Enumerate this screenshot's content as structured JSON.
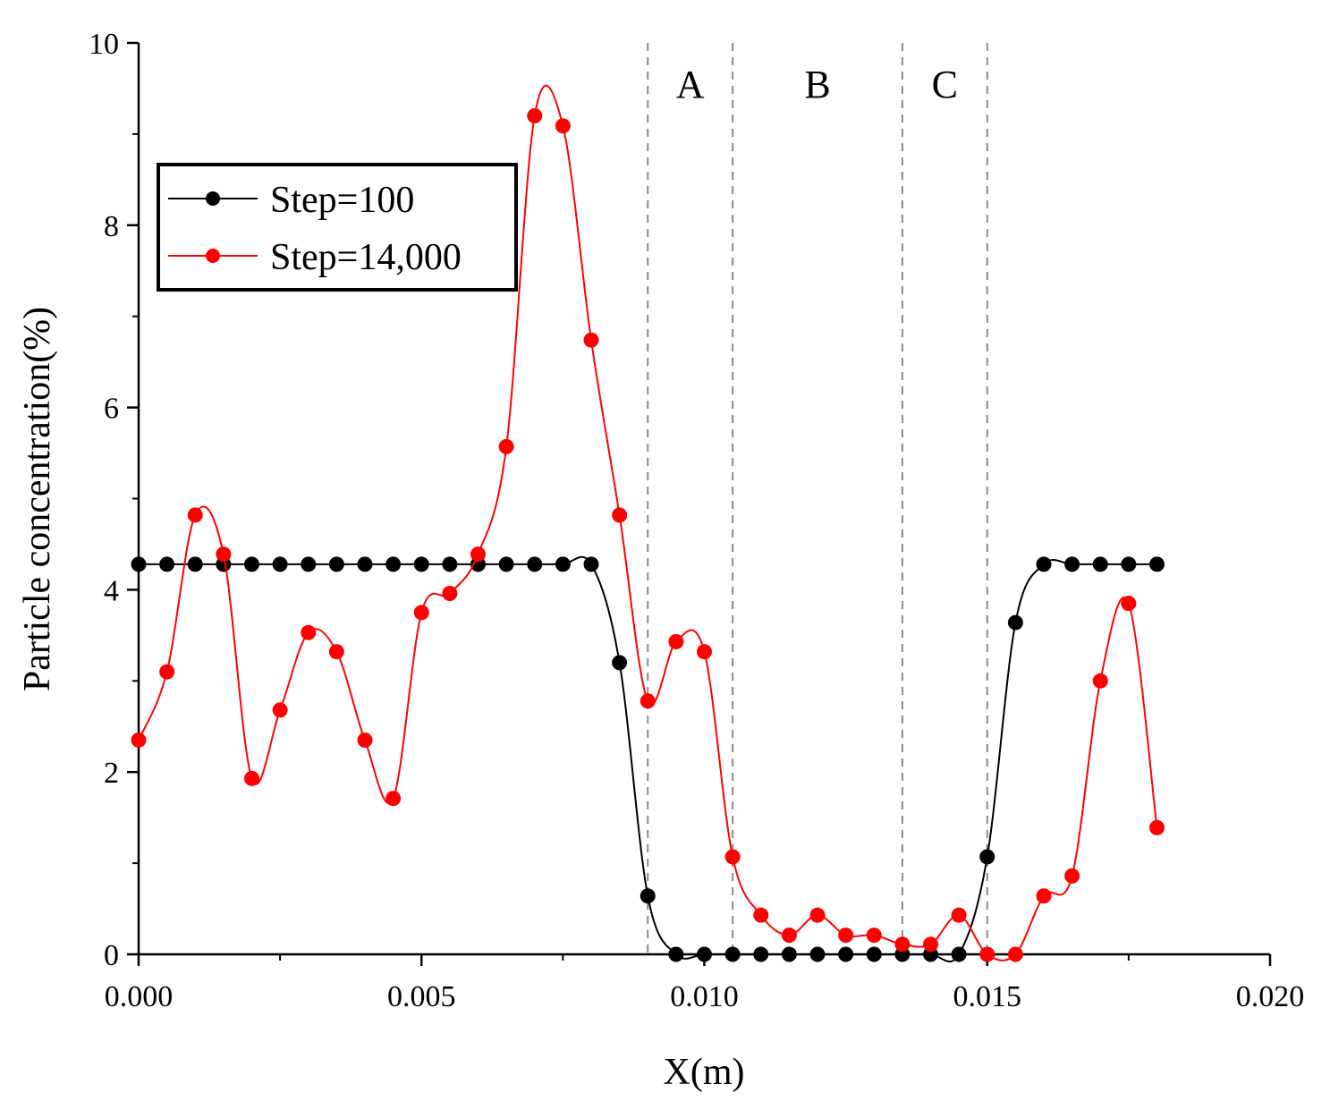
{
  "chart_data": {
    "type": "line",
    "xlabel": "X(m)",
    "ylabel": "Particle concentration(%)",
    "xlim": [
      0.0,
      0.02
    ],
    "ylim": [
      0,
      10
    ],
    "x_ticks": [
      0.0,
      0.005,
      0.01,
      0.015,
      0.02
    ],
    "x_tick_labels": [
      "0.000",
      "0.005",
      "0.010",
      "0.015",
      "0.020"
    ],
    "y_ticks": [
      0,
      2,
      4,
      6,
      8,
      10
    ],
    "y_tick_labels": [
      "0",
      "2",
      "4",
      "6",
      "8",
      "10"
    ],
    "grid": false,
    "legend_position": "top-left",
    "regions": [
      {
        "label": "A",
        "x_start": 0.009,
        "x_end": 0.0105
      },
      {
        "label": "B",
        "x_start": 0.0105,
        "x_end": 0.0135
      },
      {
        "label": "C",
        "x_start": 0.0135,
        "x_end": 0.015
      }
    ],
    "region_boundaries": [
      0.009,
      0.0105,
      0.0135,
      0.015
    ],
    "series": [
      {
        "name": "Step=100",
        "color": "#000000",
        "x": [
          0.0,
          0.0005,
          0.001,
          0.0015,
          0.002,
          0.0025,
          0.003,
          0.0035,
          0.004,
          0.0045,
          0.005,
          0.0055,
          0.006,
          0.0065,
          0.007,
          0.0075,
          0.008,
          0.0085,
          0.009,
          0.0095,
          0.01,
          0.0105,
          0.011,
          0.0115,
          0.012,
          0.0125,
          0.013,
          0.0135,
          0.014,
          0.0145,
          0.015,
          0.0155,
          0.016,
          0.0165,
          0.017,
          0.0175,
          0.018
        ],
        "y": [
          4.28,
          4.28,
          4.28,
          4.28,
          4.28,
          4.28,
          4.28,
          4.28,
          4.28,
          4.28,
          4.28,
          4.28,
          4.28,
          4.28,
          4.28,
          4.28,
          4.28,
          3.2,
          0.64,
          0.0,
          0.0,
          0.0,
          0.0,
          0.0,
          0.0,
          0.0,
          0.0,
          0.0,
          0.0,
          0.0,
          1.07,
          3.64,
          4.28,
          4.28,
          4.28,
          4.28,
          4.28
        ]
      },
      {
        "name": "Step=14,000",
        "color": "#ff0000",
        "x": [
          0.0,
          0.0005,
          0.001,
          0.0015,
          0.002,
          0.0025,
          0.003,
          0.0035,
          0.004,
          0.0045,
          0.005,
          0.0055,
          0.006,
          0.0065,
          0.007,
          0.0075,
          0.008,
          0.0085,
          0.009,
          0.0095,
          0.01,
          0.0105,
          0.011,
          0.0115,
          0.012,
          0.0125,
          0.013,
          0.0135,
          0.014,
          0.0145,
          0.015,
          0.0155,
          0.016,
          0.0165,
          0.017,
          0.0175,
          0.018
        ],
        "y": [
          2.35,
          3.1,
          4.82,
          4.39,
          1.93,
          2.68,
          3.53,
          3.32,
          2.35,
          1.71,
          3.75,
          3.96,
          4.39,
          5.57,
          9.2,
          9.09,
          6.74,
          4.82,
          2.78,
          3.43,
          3.32,
          1.07,
          0.43,
          0.21,
          0.43,
          0.21,
          0.21,
          0.11,
          0.11,
          0.43,
          0.0,
          0.0,
          0.64,
          0.86,
          3.0,
          3.85,
          1.39
        ]
      }
    ]
  }
}
